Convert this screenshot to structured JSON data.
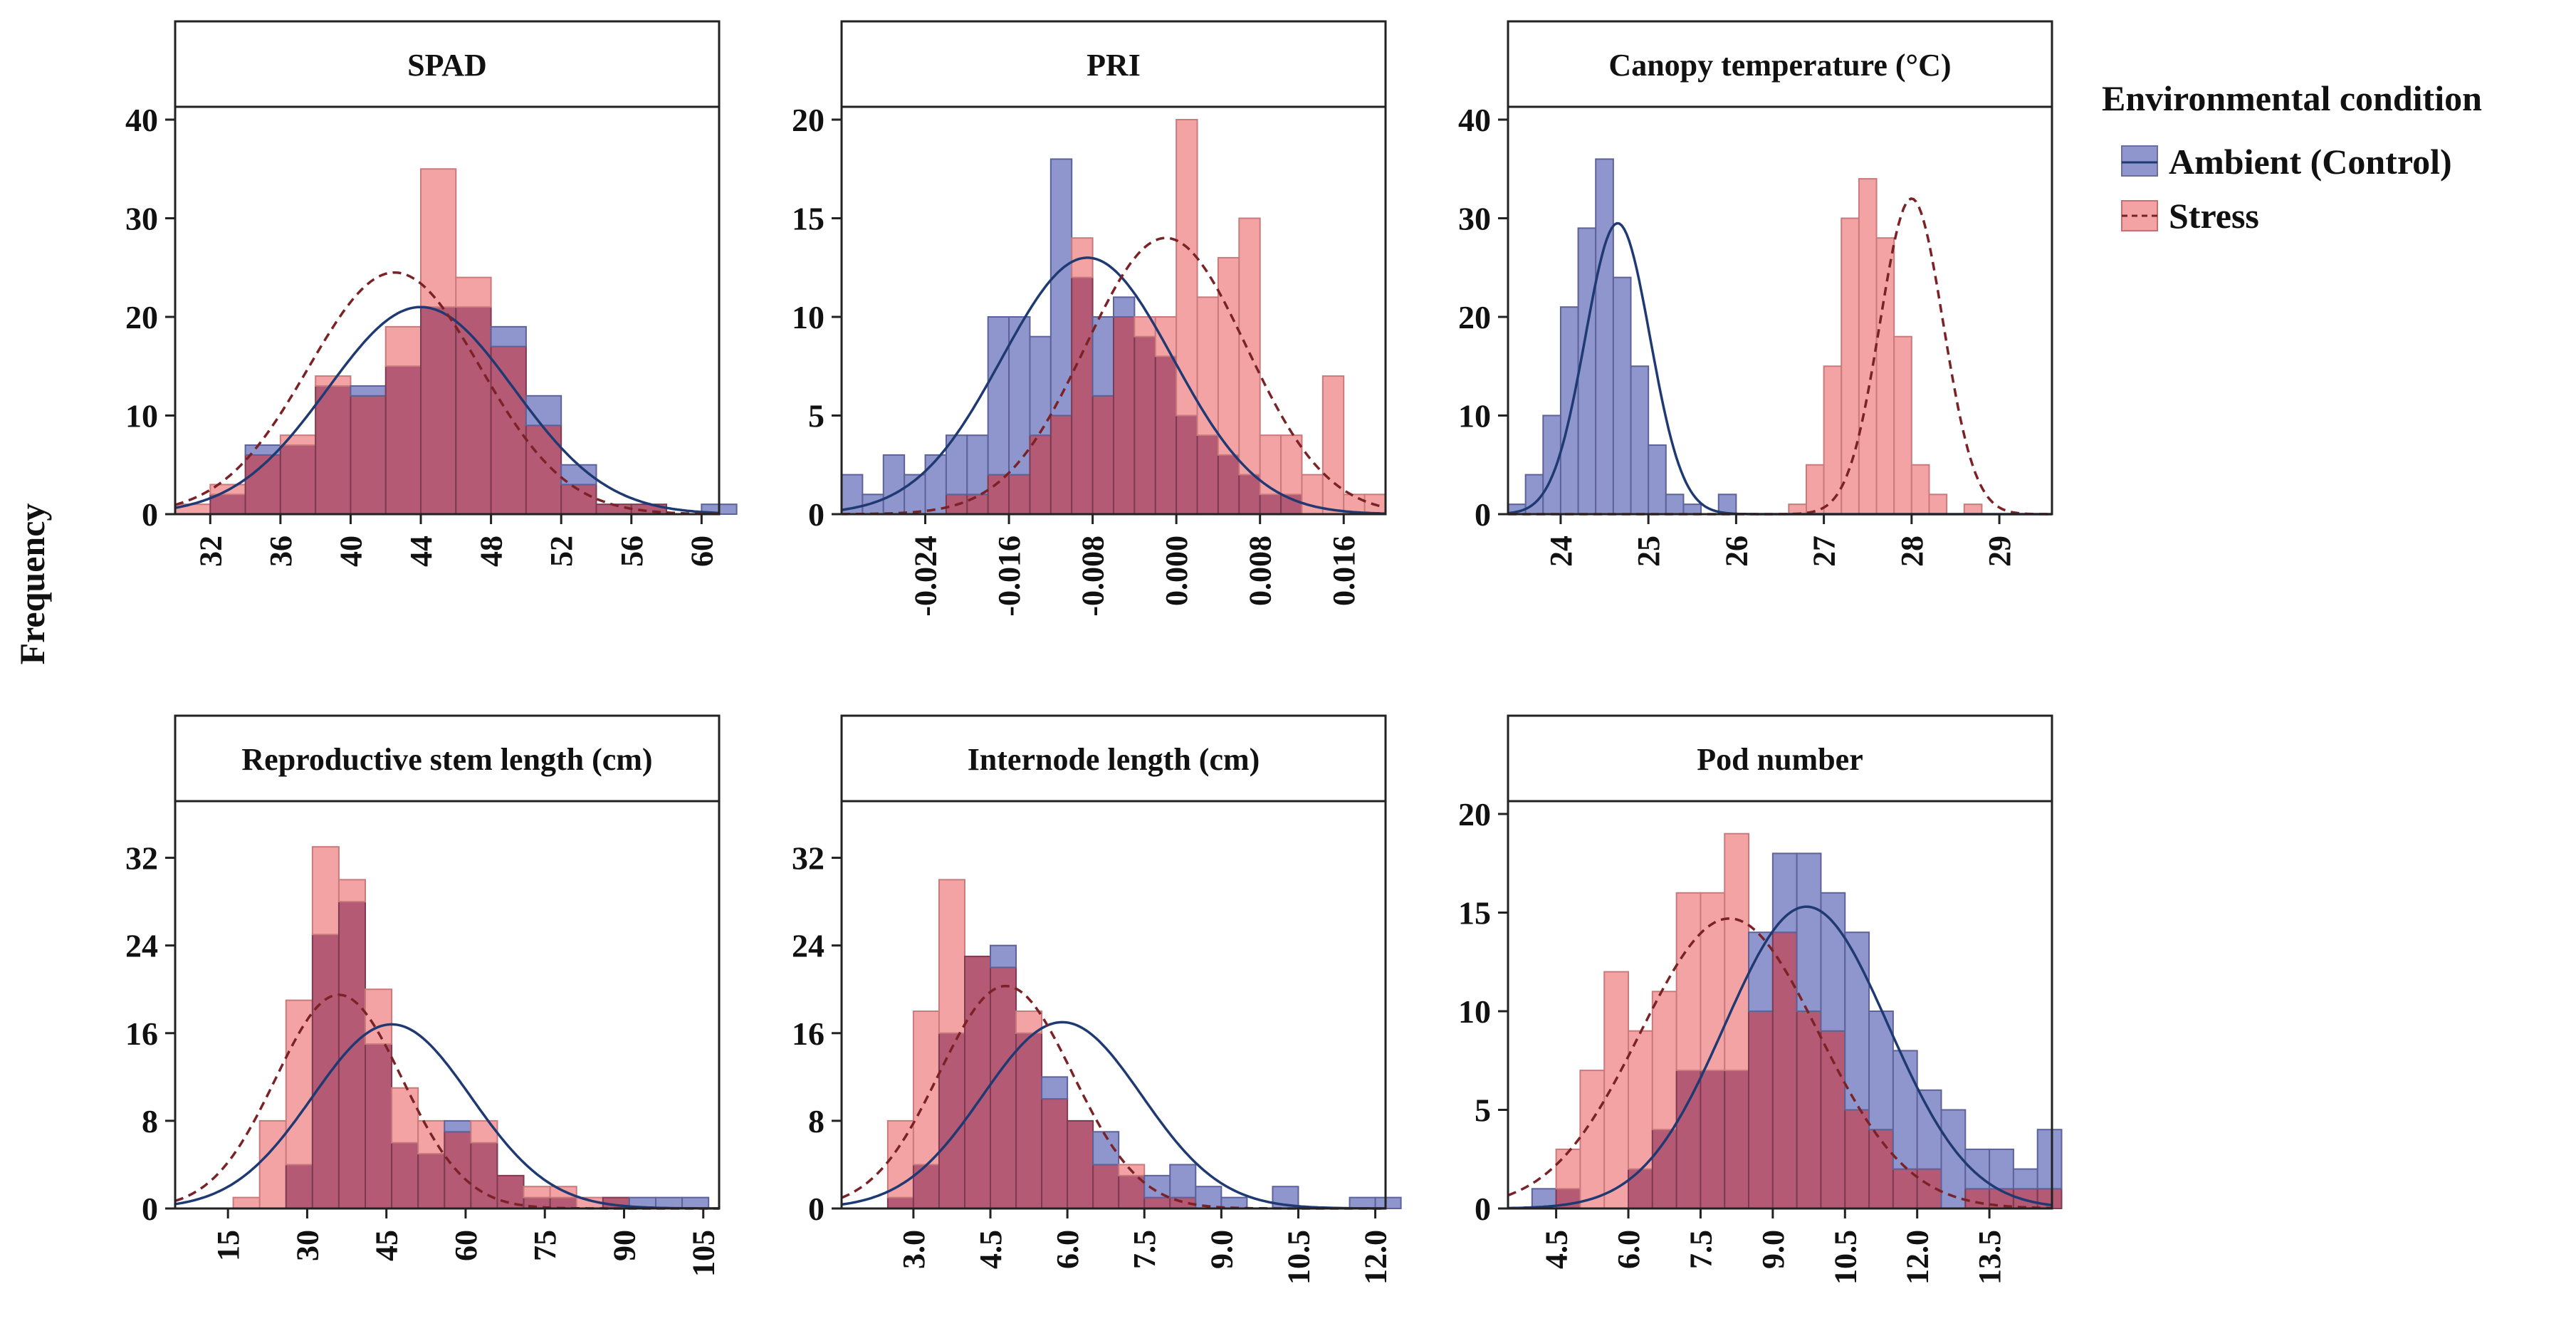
{
  "figure": {
    "ylabel": "Frequency",
    "legend": {
      "title": "Environmental condition",
      "entries": [
        {
          "label": "Ambient (Control)",
          "color": "#8f95cd"
        },
        {
          "label": "Stress",
          "color": "#f4a3a5"
        }
      ],
      "overlap_color": "#b45a74"
    }
  },
  "chart_data": [
    {
      "type": "histogram",
      "title": "SPAD",
      "bin_start": 30,
      "bin_width": 2,
      "xlim": [
        30,
        61
      ],
      "ylim": [
        0,
        40
      ],
      "xticks": [
        32,
        36,
        40,
        44,
        48,
        52,
        56,
        60
      ],
      "xtick_labels": [
        "32",
        "36",
        "40",
        "44",
        "48",
        "52",
        "56",
        "60"
      ],
      "yticks": [
        0,
        10,
        20,
        30,
        40
      ],
      "rotate_xticks": true,
      "series": [
        {
          "name": "Ambient (Control)",
          "counts": [
            0,
            2,
            7,
            7,
            13,
            13,
            15,
            21,
            21,
            19,
            12,
            5,
            1,
            1,
            0,
            1
          ],
          "normal_fit": {
            "mean": 44,
            "sd": 5.3,
            "peak": 21,
            "style": "solid",
            "color": "#1f3a73"
          }
        },
        {
          "name": "Stress",
          "counts": [
            1,
            3,
            6,
            8,
            14,
            12,
            19,
            35,
            24,
            17,
            9,
            3,
            1,
            1,
            0,
            0
          ],
          "normal_fit": {
            "mean": 42.5,
            "sd": 4.9,
            "peak": 24.5,
            "style": "dashed",
            "color": "#7a2226"
          }
        }
      ]
    },
    {
      "type": "histogram",
      "title": "PRI",
      "bin_start": -0.032,
      "bin_width": 0.002,
      "xlim": [
        -0.032,
        0.02
      ],
      "ylim": [
        0,
        20
      ],
      "xticks": [
        -0.024,
        -0.016,
        -0.008,
        0.0,
        0.008,
        0.016
      ],
      "xtick_labels": [
        "-0.024",
        "-0.016",
        "-0.008",
        "0.000",
        "0.008",
        "0.016"
      ],
      "yticks": [
        0,
        5,
        10,
        15,
        20
      ],
      "rotate_xticks": true,
      "series": [
        {
          "name": "Ambient (Control)",
          "counts": [
            2,
            1,
            3,
            2,
            3,
            4,
            4,
            10,
            10,
            9,
            18,
            12,
            10,
            11,
            9,
            8,
            5,
            4,
            3,
            2,
            1,
            1,
            0,
            0,
            0,
            0
          ],
          "normal_fit": {
            "mean": -0.0085,
            "sd": 0.0082,
            "peak": 13,
            "style": "solid",
            "color": "#1f3a73"
          }
        },
        {
          "name": "Stress",
          "counts": [
            0,
            0,
            0,
            0,
            0,
            1,
            1,
            2,
            2,
            4,
            5,
            14,
            6,
            10,
            10,
            10,
            20,
            11,
            13,
            15,
            4,
            4,
            2,
            7,
            1,
            1
          ],
          "normal_fit": {
            "mean": -0.001,
            "sd": 0.0077,
            "peak": 14,
            "style": "dashed",
            "color": "#7a2226"
          }
        }
      ]
    },
    {
      "type": "histogram",
      "title": "Canopy temperature (°C)",
      "bin_start": 23.4,
      "bin_width": 0.2,
      "xlim": [
        23.4,
        29.6
      ],
      "ylim": [
        0,
        40
      ],
      "xticks": [
        24,
        25,
        26,
        27,
        28,
        29
      ],
      "xtick_labels": [
        "24",
        "25",
        "26",
        "27",
        "28",
        "29"
      ],
      "yticks": [
        0,
        10,
        20,
        30,
        40
      ],
      "rotate_xticks": true,
      "series": [
        {
          "name": "Ambient (Control)",
          "counts": [
            1,
            4,
            10,
            21,
            29,
            36,
            24,
            15,
            7,
            2,
            1,
            0,
            2,
            0,
            0,
            0,
            0,
            0,
            0,
            0,
            0,
            0,
            0,
            0,
            0,
            0,
            0,
            0,
            0,
            0,
            0
          ],
          "normal_fit": {
            "mean": 24.65,
            "sd": 0.37,
            "peak": 29.5,
            "style": "solid",
            "color": "#1f3a73"
          }
        },
        {
          "name": "Stress",
          "counts": [
            0,
            0,
            0,
            0,
            0,
            0,
            0,
            0,
            0,
            0,
            0,
            0,
            0,
            0,
            0,
            0,
            1,
            5,
            15,
            30,
            34,
            28,
            18,
            5,
            2,
            0,
            1,
            0,
            0,
            0,
            0
          ],
          "normal_fit": {
            "mean": 28.0,
            "sd": 0.36,
            "peak": 32,
            "style": "dashed",
            "color": "#7a2226"
          }
        }
      ]
    },
    {
      "type": "histogram",
      "title": "Reproductive stem length (cm)",
      "bin_start": 16,
      "bin_width": 5,
      "xlim": [
        5,
        108
      ],
      "ylim": [
        0,
        36
      ],
      "xticks": [
        15,
        30,
        45,
        60,
        75,
        90,
        105
      ],
      "xtick_labels": [
        "15",
        "30",
        "45",
        "60",
        "75",
        "90",
        "105"
      ],
      "yticks": [
        0,
        8,
        16,
        24,
        32
      ],
      "rotate_xticks": true,
      "series": [
        {
          "name": "Ambient (Control)",
          "counts": [
            0,
            0,
            4,
            25,
            28,
            15,
            6,
            5,
            8,
            6,
            3,
            1,
            1,
            0,
            1,
            1,
            1,
            1
          ],
          "normal_fit": {
            "mean": 46,
            "sd": 15,
            "peak": 16.8,
            "style": "solid",
            "color": "#1f3a73"
          }
        },
        {
          "name": "Stress",
          "counts": [
            1,
            8,
            19,
            33,
            30,
            20,
            11,
            8,
            7,
            8,
            3,
            2,
            2,
            1,
            1,
            0,
            0,
            0
          ],
          "normal_fit": {
            "mean": 36,
            "sd": 12,
            "peak": 19.5,
            "style": "dashed",
            "color": "#7a2226"
          }
        }
      ]
    },
    {
      "type": "histogram",
      "title": "Internode length (cm)",
      "bin_start": 2.5,
      "bin_width": 0.5,
      "xlim": [
        1.6,
        12.2
      ],
      "ylim": [
        0,
        36
      ],
      "xticks": [
        3.0,
        4.5,
        6.0,
        7.5,
        9.0,
        10.5,
        12.0
      ],
      "xtick_labels": [
        "3.0",
        "4.5",
        "6.0",
        "7.5",
        "9.0",
        "10.5",
        "12.0"
      ],
      "yticks": [
        0,
        8,
        16,
        24,
        32
      ],
      "rotate_xticks": true,
      "series": [
        {
          "name": "Ambient (Control)",
          "counts": [
            1,
            4,
            16,
            23,
            24,
            16,
            12,
            8,
            7,
            3,
            3,
            4,
            2,
            1,
            0,
            2,
            0,
            0,
            1,
            1
          ],
          "normal_fit": {
            "mean": 5.9,
            "sd": 1.55,
            "peak": 17,
            "style": "solid",
            "color": "#1f3a73"
          }
        },
        {
          "name": "Stress",
          "counts": [
            8,
            18,
            30,
            23,
            22,
            18,
            10,
            8,
            4,
            4,
            1,
            1,
            0,
            0,
            0,
            0,
            0,
            0,
            0,
            0
          ],
          "normal_fit": {
            "mean": 4.8,
            "sd": 1.3,
            "peak": 20.3,
            "style": "dashed",
            "color": "#7a2226"
          }
        }
      ]
    },
    {
      "type": "histogram",
      "title": "Pod number",
      "bin_start": 4.0,
      "bin_width": 0.5,
      "xlim": [
        3.5,
        14.8
      ],
      "ylim": [
        0,
        20
      ],
      "xticks": [
        4.5,
        6.0,
        7.5,
        9.0,
        10.5,
        12.0,
        13.5
      ],
      "xtick_labels": [
        "4.5",
        "6.0",
        "7.5",
        "9.0",
        "10.5",
        "12.0",
        "13.5"
      ],
      "yticks": [
        0,
        5,
        10,
        15,
        20
      ],
      "rotate_xticks": true,
      "series": [
        {
          "name": "Ambient (Control)",
          "counts": [
            1,
            1,
            0,
            0,
            2,
            4,
            7,
            7,
            7,
            14,
            18,
            18,
            16,
            14,
            10,
            8,
            6,
            5,
            3,
            3,
            2,
            4
          ],
          "normal_fit": {
            "mean": 9.7,
            "sd": 1.7,
            "peak": 15.3,
            "style": "solid",
            "color": "#1f3a73"
          }
        },
        {
          "name": "Stress",
          "counts": [
            0,
            3,
            7,
            12,
            9,
            11,
            16,
            16,
            19,
            10,
            14,
            10,
            9,
            5,
            4,
            2,
            2,
            0,
            1,
            1,
            1,
            1
          ],
          "normal_fit": {
            "mean": 8.1,
            "sd": 1.85,
            "peak": 14.7,
            "style": "dashed",
            "color": "#7a2226"
          }
        }
      ]
    }
  ]
}
